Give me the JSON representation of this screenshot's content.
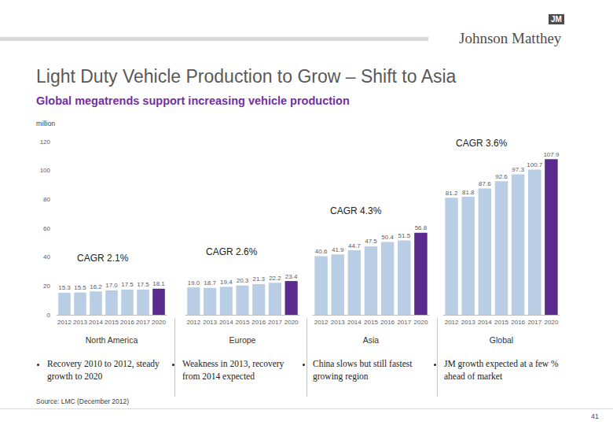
{
  "header": {
    "title": "Light Duty Vehicle Production to Grow – Shift to Asia",
    "subtitle": "Global megatrends support increasing vehicle production",
    "logo_mark": "JM",
    "logo": "Johnson Matthey"
  },
  "unit": "million",
  "source": "Source: LMC (December 2012)",
  "page": "41",
  "chart_data": [
    {
      "type": "bar",
      "title": "North America",
      "annotation": "CAGR 2.1%",
      "note": "Recovery 2010 to 2012, steady growth to 2020",
      "categories": [
        "2012",
        "2013",
        "2014",
        "2015",
        "2016",
        "2017",
        "2020"
      ],
      "values": [
        15.3,
        15.5,
        16.2,
        17.0,
        17.5,
        17.5,
        18.1
      ],
      "value_labels": [
        "15.3",
        "15.5",
        "16.2",
        "17.0",
        "17.5",
        "17.5",
        "18.1"
      ],
      "colors": [
        "#b9cde5",
        "#b9cde5",
        "#b9cde5",
        "#b9cde5",
        "#b9cde5",
        "#b9cde5",
        "#5a2a8c"
      ],
      "ylim": [
        0,
        120
      ],
      "yticks": [
        0,
        20,
        40,
        60,
        80,
        100,
        120
      ],
      "data_labels": true,
      "grid": false
    },
    {
      "type": "bar",
      "title": "Europe",
      "annotation": "CAGR 2.6%",
      "note": "Weakness in 2013, recovery from 2014 expected",
      "categories": [
        "2012",
        "2013",
        "2014",
        "2015",
        "2016",
        "2017",
        "2020"
      ],
      "values": [
        19.0,
        18.7,
        19.4,
        20.3,
        21.3,
        22.2,
        23.4
      ],
      "value_labels": [
        "19.0",
        "18.7",
        "19.4",
        "20.3",
        "21.3",
        "22.2",
        "23.4"
      ],
      "colors": [
        "#b9cde5",
        "#b9cde5",
        "#b9cde5",
        "#b9cde5",
        "#b9cde5",
        "#b9cde5",
        "#5a2a8c"
      ],
      "ylim": [
        0,
        120
      ],
      "yticks": [
        0,
        20,
        40,
        60,
        80,
        100,
        120
      ],
      "data_labels": true,
      "grid": false,
      "tick_labels": "x"
    },
    {
      "type": "bar",
      "title": "Asia",
      "annotation": "CAGR 4.3%",
      "note": "China slows but still fastest growing region",
      "categories": [
        "2012",
        "2013",
        "2014",
        "2015",
        "2016",
        "2017",
        "2020"
      ],
      "values": [
        40.6,
        41.9,
        44.7,
        47.5,
        50.4,
        51.5,
        56.8
      ],
      "value_labels": [
        "40.6",
        "41.9",
        "44.7",
        "47.5",
        "50.4",
        "51.5",
        "56.8"
      ],
      "colors": [
        "#b9cde5",
        "#b9cde5",
        "#b9cde5",
        "#b9cde5",
        "#b9cde5",
        "#b9cde5",
        "#5a2a8c"
      ],
      "ylim": [
        0,
        120
      ],
      "yticks": [
        0,
        20,
        40,
        60,
        80,
        100,
        120
      ],
      "data_labels": true,
      "grid": false,
      "tick_labels": "x"
    },
    {
      "type": "bar",
      "title": "Global",
      "annotation": "CAGR 3.6%",
      "note": "JM growth expected at a few % ahead of market",
      "categories": [
        "2012",
        "2013",
        "2014",
        "2015",
        "2016",
        "2017",
        "2020"
      ],
      "values": [
        81.2,
        81.8,
        87.6,
        92.6,
        97.3,
        100.7,
        107.9
      ],
      "value_labels": [
        "81.2",
        "81.8",
        "87.6",
        "92.6",
        "97.3",
        "100.7",
        "107.9"
      ],
      "colors": [
        "#b9cde5",
        "#b9cde5",
        "#b9cde5",
        "#b9cde5",
        "#b9cde5",
        "#b9cde5",
        "#5a2a8c"
      ],
      "ylim": [
        0,
        120
      ],
      "yticks": [
        0,
        20,
        40,
        60,
        80,
        100,
        120
      ],
      "data_labels": true,
      "grid": false,
      "tick_labels": "x"
    }
  ]
}
